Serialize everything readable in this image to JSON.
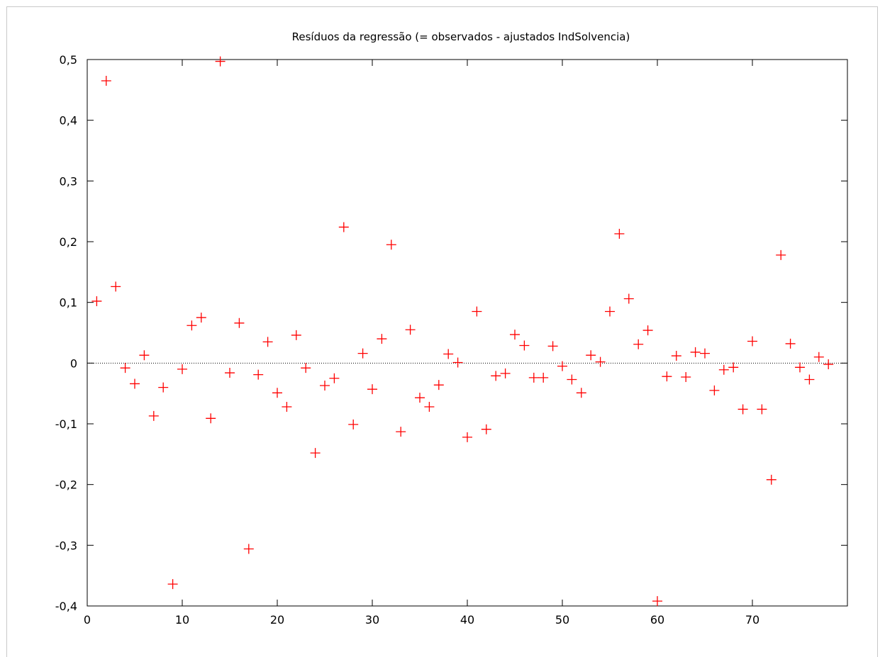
{
  "chart_data": {
    "type": "scatter",
    "title": "Resíduos da regressão (= observados - ajustados IndSolvencia)",
    "xlabel": "",
    "ylabel": "",
    "xlim": [
      0,
      80
    ],
    "ylim": [
      -0.4,
      0.5
    ],
    "xticks": [
      0,
      10,
      20,
      30,
      40,
      50,
      60,
      70
    ],
    "xtick_labels": [
      "0",
      "10",
      "20",
      "30",
      "40",
      "50",
      "60",
      "70"
    ],
    "yticks": [
      -0.4,
      -0.3,
      -0.2,
      -0.1,
      0,
      0.1,
      0.2,
      0.3,
      0.4,
      0.5
    ],
    "ytick_labels": [
      "-0,4",
      "-0,3",
      "-0,2",
      "-0,1",
      "0",
      "0,1",
      "0,2",
      "0,3",
      "0,4",
      "0,5"
    ],
    "grid": false,
    "zero_line": true,
    "marker": "+",
    "colors": {
      "points": "#ff0000",
      "axes": "#000000",
      "zero_line": "#000000"
    },
    "series": [
      {
        "x": [
          1,
          2,
          3,
          4,
          5,
          6,
          7,
          8,
          9,
          10,
          11,
          12,
          13,
          14,
          15,
          16,
          17,
          18,
          19,
          20,
          21,
          22,
          23,
          24,
          25,
          26,
          27,
          28,
          29,
          30,
          31,
          32,
          33,
          34,
          35,
          36,
          37,
          38,
          39,
          40,
          41,
          42,
          43,
          44,
          45,
          46,
          47,
          48,
          49,
          50,
          51,
          52,
          53,
          54,
          55,
          56,
          57,
          58,
          59,
          60,
          61,
          62,
          63,
          64,
          65,
          66,
          67,
          68,
          69,
          70,
          71,
          72,
          73,
          74,
          75,
          76,
          77,
          78
        ],
        "y": [
          0.102,
          0.465,
          0.126,
          -0.008,
          -0.034,
          0.013,
          -0.087,
          -0.04,
          -0.364,
          -0.01,
          0.062,
          0.075,
          -0.091,
          0.497,
          -0.016,
          0.066,
          -0.306,
          -0.019,
          0.035,
          -0.049,
          -0.072,
          0.046,
          -0.008,
          -0.148,
          -0.037,
          -0.025,
          0.224,
          -0.101,
          0.016,
          -0.043,
          0.04,
          0.195,
          -0.113,
          0.055,
          -0.057,
          -0.072,
          -0.036,
          0.015,
          0.001,
          -0.122,
          0.085,
          -0.109,
          -0.021,
          -0.017,
          0.047,
          0.029,
          -0.024,
          -0.024,
          0.028,
          -0.005,
          -0.027,
          -0.049,
          0.013,
          0.002,
          0.085,
          0.213,
          0.106,
          0.031,
          0.054,
          -0.392,
          -0.022,
          0.012,
          -0.023,
          0.018,
          0.016,
          -0.045,
          -0.011,
          -0.007,
          -0.076,
          0.036,
          -0.076,
          -0.192,
          0.178,
          0.032,
          -0.007,
          -0.027,
          0.01,
          -0.002
        ]
      }
    ]
  }
}
